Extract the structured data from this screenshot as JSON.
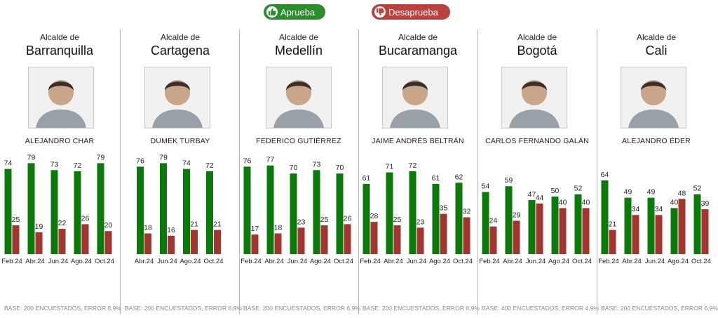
{
  "legend": {
    "approve": "Aprueba",
    "disapprove": "Desaprueba"
  },
  "colors": {
    "approve": "#0b7a0b",
    "disapprove": "#a33530",
    "approve_badge": "#2e8b2e",
    "disapprove_badge": "#b8423f"
  },
  "panels": [
    {
      "role": "Alcalde de",
      "city": "Barranquilla",
      "name": "ALEJANDRO CHAR",
      "base": "BASE: 200 ENCUESTADOS, ERROR 6,9%"
    },
    {
      "role": "Alcalde de",
      "city": "Cartagena",
      "name": "DUMEK TURBAY",
      "base": "BASE: 200 ENCUESTADOS, ERROR 6,9%"
    },
    {
      "role": "Alcalde de",
      "city": "Medellín",
      "name": "FEDERICO GUTIÉRREZ",
      "base": "BASE: 200 ENCUESTADOS, ERROR 6,9%"
    },
    {
      "role": "Alcalde de",
      "city": "Bucaramanga",
      "name": "JAIME ANDRÉS BELTRÁN",
      "base": "BASE: 200 ENCUESTADOS, ERROR 6,9%"
    },
    {
      "role": "Alcalde de",
      "city": "Bogotá",
      "name": "CARLOS FERNANDO GALÁN",
      "base": "BASE: 400 ENCUESTADOS, ERROR 4,9%"
    },
    {
      "role": "Alcalde de",
      "city": "Cali",
      "name": "ALEJANDRO ÉDER",
      "base": "BASE: 200 ENCUESTADOS, ERROR 6,9%"
    }
  ],
  "chart_data": [
    {
      "type": "bar",
      "title": "Barranquilla",
      "categories": [
        "Feb.24",
        "Abr.24",
        "Jun.24",
        "Ago.24",
        "Oct.24"
      ],
      "series": [
        {
          "name": "Aprueba",
          "values": [
            74,
            79,
            73,
            72,
            79
          ]
        },
        {
          "name": "Desaprueba",
          "values": [
            25,
            19,
            22,
            26,
            20
          ]
        }
      ],
      "ylim": [
        0,
        80
      ],
      "grid": false,
      "legend": "top-center"
    },
    {
      "type": "bar",
      "title": "Cartagena",
      "categories": [
        "Abr.24",
        "Jun.24",
        "Ago.24",
        "Oct.24"
      ],
      "series": [
        {
          "name": "Aprueba",
          "values": [
            76,
            79,
            74,
            72
          ]
        },
        {
          "name": "Desaprueba",
          "values": [
            18,
            16,
            21,
            21
          ]
        }
      ],
      "ylim": [
        0,
        80
      ],
      "grid": false,
      "legend": "top-center"
    },
    {
      "type": "bar",
      "title": "Medellín",
      "categories": [
        "Feb.24",
        "Abr.24",
        "Jun.24",
        "Ago.24",
        "Oct.24"
      ],
      "series": [
        {
          "name": "Aprueba",
          "values": [
            76,
            77,
            70,
            73,
            70
          ]
        },
        {
          "name": "Desaprueba",
          "values": [
            17,
            18,
            23,
            25,
            26
          ]
        }
      ],
      "ylim": [
        0,
        80
      ],
      "grid": false,
      "legend": "top-center"
    },
    {
      "type": "bar",
      "title": "Bucaramanga",
      "categories": [
        "Feb.24",
        "Abr.24",
        "Jun.24",
        "Ago.24",
        "Oct.24"
      ],
      "series": [
        {
          "name": "Aprueba",
          "values": [
            61,
            71,
            72,
            61,
            62
          ]
        },
        {
          "name": "Desaprueba",
          "values": [
            28,
            25,
            23,
            35,
            32
          ]
        }
      ],
      "ylim": [
        0,
        80
      ],
      "grid": false,
      "legend": "top-center"
    },
    {
      "type": "bar",
      "title": "Bogotá",
      "categories": [
        "Feb.24",
        "Abr.24",
        "Jun.24",
        "Ago.24",
        "Oct.24"
      ],
      "series": [
        {
          "name": "Aprueba",
          "values": [
            54,
            59,
            47,
            50,
            52
          ]
        },
        {
          "name": "Desaprueba",
          "values": [
            24,
            29,
            44,
            40,
            40
          ]
        }
      ],
      "ylim": [
        0,
        80
      ],
      "grid": false,
      "legend": "top-center"
    },
    {
      "type": "bar",
      "title": "Cali",
      "categories": [
        "Feb.24",
        "Abr.24",
        "Jun.24",
        "Ago.24",
        "Oct.24"
      ],
      "series": [
        {
          "name": "Aprueba",
          "values": [
            64,
            49,
            49,
            40,
            52
          ]
        },
        {
          "name": "Desaprueba",
          "values": [
            21,
            34,
            34,
            48,
            39
          ]
        }
      ],
      "ylim": [
        0,
        80
      ],
      "grid": false,
      "legend": "top-center"
    }
  ]
}
